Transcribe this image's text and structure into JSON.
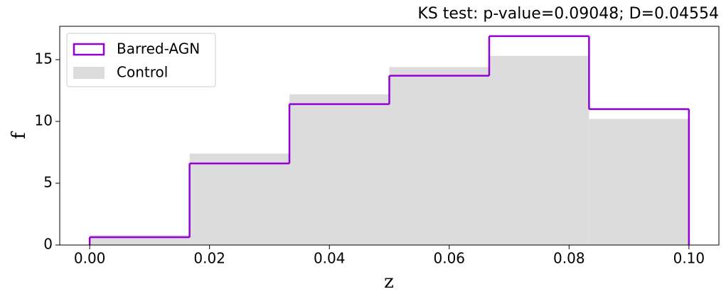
{
  "chart_data": {
    "type": "histogram",
    "title": "KS test: p-value=0.09048; D=0.04554",
    "x_label": "z",
    "y_label": "f",
    "bins": [
      0,
      0.01667,
      0.03333,
      0.05,
      0.06667,
      0.08333,
      0.1
    ],
    "series": [
      {
        "name": "Barred-AGN",
        "color": "#9400d3",
        "histtype": "step",
        "values": [
          0.63,
          6.6,
          11.4,
          13.7,
          16.9,
          11.0
        ]
      },
      {
        "name": "Control",
        "color": "#dcdcdc",
        "histtype": "stepfilled",
        "values": [
          0.8,
          7.4,
          12.2,
          14.4,
          15.3,
          10.2
        ]
      }
    ],
    "xlim": [
      -0.005,
      0.105
    ],
    "ylim": [
      0,
      17.7
    ],
    "xticks": [
      {
        "value": 0,
        "label": "0.00"
      },
      {
        "value": 0.02,
        "label": "0.02"
      },
      {
        "value": 0.04,
        "label": "0.04"
      },
      {
        "value": 0.06,
        "label": "0.06"
      },
      {
        "value": 0.08,
        "label": "0.08"
      },
      {
        "value": 0.1,
        "label": "0.10"
      }
    ],
    "yticks": [
      0,
      5,
      10,
      15
    ],
    "legend": "upper-left"
  }
}
